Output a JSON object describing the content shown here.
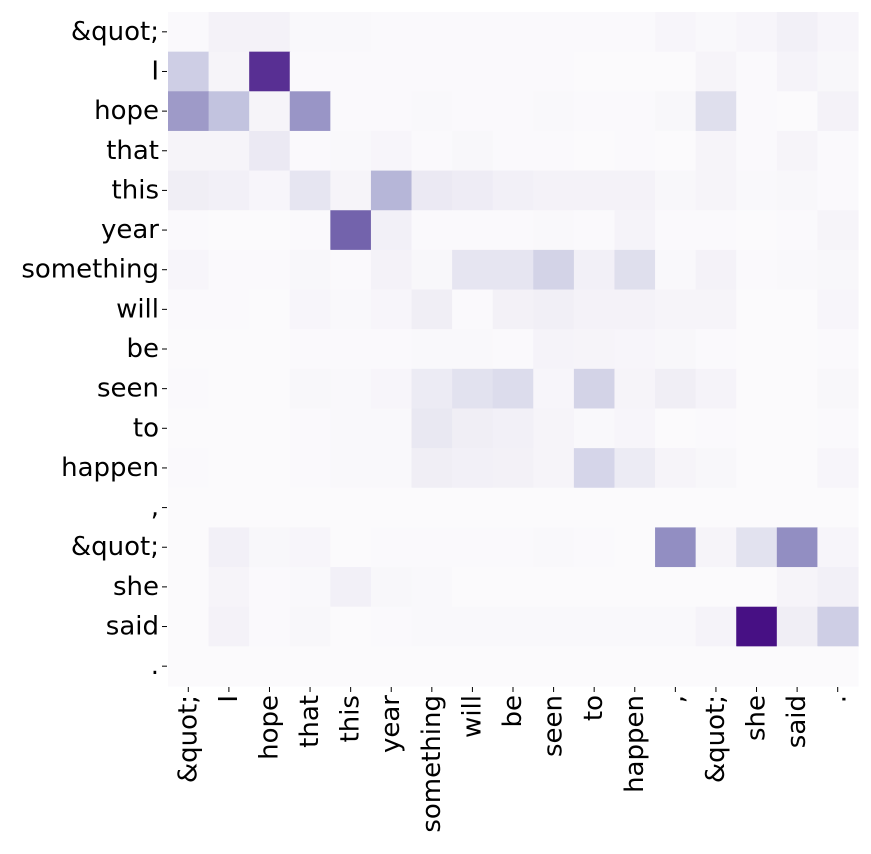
{
  "chart_data": {
    "type": "heatmap",
    "title": "",
    "xlabel": "",
    "ylabel": "",
    "colormap": "Purples",
    "value_range": [
      0,
      1
    ],
    "grid": false,
    "legend": "none",
    "x_labels": [
      "&quot;",
      "I",
      "hope",
      "that",
      "this",
      "year",
      "something",
      "will",
      "be",
      "seen",
      "to",
      "happen",
      ",",
      "&quot;",
      "she",
      "said",
      "."
    ],
    "y_labels": [
      "&quot;",
      "I",
      "hope",
      "that",
      "this",
      "year",
      "something",
      "will",
      "be",
      "seen",
      "to",
      "happen",
      ",",
      "&quot;",
      "she",
      "said",
      "."
    ],
    "values": [
      [
        0.02,
        0.08,
        0.08,
        0.03,
        0.03,
        0.02,
        0.02,
        0.02,
        0.02,
        0.02,
        0.02,
        0.02,
        0.05,
        0.03,
        0.05,
        0.1,
        0.05
      ],
      [
        0.3,
        0.06,
        0.85,
        0.02,
        0.02,
        0.02,
        0.02,
        0.02,
        0.02,
        0.02,
        0.01,
        0.01,
        0.01,
        0.06,
        0.02,
        0.07,
        0.04
      ],
      [
        0.5,
        0.35,
        0.06,
        0.52,
        0.02,
        0.02,
        0.03,
        0.02,
        0.02,
        0.03,
        0.02,
        0.02,
        0.04,
        0.22,
        0.02,
        0.01,
        0.08
      ],
      [
        0.06,
        0.06,
        0.15,
        0.02,
        0.03,
        0.05,
        0.02,
        0.04,
        0.02,
        0.02,
        0.01,
        0.02,
        0.01,
        0.06,
        0.02,
        0.06,
        0.02
      ],
      [
        0.12,
        0.1,
        0.05,
        0.18,
        0.06,
        0.4,
        0.15,
        0.13,
        0.1,
        0.08,
        0.08,
        0.08,
        0.04,
        0.06,
        0.03,
        0.04,
        0.02
      ],
      [
        0.02,
        0.01,
        0.01,
        0.02,
        0.7,
        0.1,
        0.02,
        0.02,
        0.02,
        0.03,
        0.02,
        0.07,
        0.02,
        0.02,
        0.01,
        0.02,
        0.06
      ],
      [
        0.05,
        0.02,
        0.02,
        0.04,
        0.02,
        0.08,
        0.04,
        0.18,
        0.18,
        0.28,
        0.1,
        0.22,
        0.03,
        0.08,
        0.02,
        0.03,
        0.04
      ],
      [
        0.02,
        0.02,
        0.01,
        0.05,
        0.03,
        0.05,
        0.12,
        0.02,
        0.09,
        0.11,
        0.08,
        0.08,
        0.06,
        0.06,
        0.01,
        0.01,
        0.05
      ],
      [
        0.01,
        0.01,
        0.01,
        0.02,
        0.02,
        0.02,
        0.03,
        0.03,
        0.02,
        0.07,
        0.06,
        0.05,
        0.04,
        0.02,
        0.01,
        0.01,
        0.02
      ],
      [
        0.02,
        0.01,
        0.01,
        0.04,
        0.03,
        0.05,
        0.14,
        0.2,
        0.24,
        0.05,
        0.28,
        0.06,
        0.12,
        0.07,
        0.01,
        0.01,
        0.04
      ],
      [
        0.01,
        0.01,
        0.01,
        0.02,
        0.03,
        0.03,
        0.16,
        0.12,
        0.1,
        0.06,
        0.03,
        0.05,
        0.01,
        0.02,
        0.01,
        0.01,
        0.02
      ],
      [
        0.02,
        0.01,
        0.01,
        0.02,
        0.03,
        0.03,
        0.12,
        0.1,
        0.09,
        0.06,
        0.27,
        0.14,
        0.06,
        0.04,
        0.01,
        0.01,
        0.05
      ],
      [
        0.01,
        0.01,
        0.01,
        0.01,
        0.01,
        0.01,
        0.01,
        0.01,
        0.01,
        0.01,
        0.01,
        0.01,
        0.01,
        0.01,
        0.01,
        0.01,
        0.01
      ],
      [
        0.01,
        0.1,
        0.04,
        0.05,
        0.01,
        0.02,
        0.02,
        0.02,
        0.02,
        0.03,
        0.02,
        0.01,
        0.55,
        0.06,
        0.2,
        0.55,
        0.05
      ],
      [
        0.01,
        0.06,
        0.02,
        0.03,
        0.1,
        0.04,
        0.03,
        0.01,
        0.01,
        0.01,
        0.01,
        0.01,
        0.01,
        0.01,
        0.01,
        0.06,
        0.1
      ],
      [
        0.01,
        0.08,
        0.02,
        0.04,
        0.01,
        0.02,
        0.03,
        0.03,
        0.03,
        0.03,
        0.03,
        0.03,
        0.03,
        0.07,
        0.95,
        0.12,
        0.3
      ],
      [
        0.01,
        0.01,
        0.01,
        0.01,
        0.01,
        0.01,
        0.01,
        0.01,
        0.01,
        0.01,
        0.01,
        0.01,
        0.01,
        0.01,
        0.01,
        0.01,
        0.01
      ]
    ]
  }
}
